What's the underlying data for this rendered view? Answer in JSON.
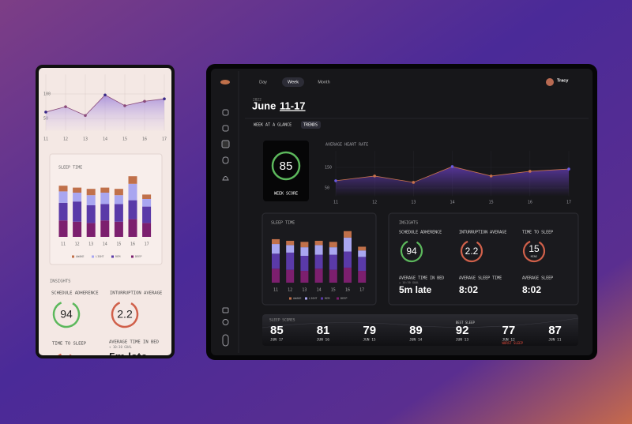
{
  "nav": {
    "tabs": [
      "Day",
      "Week",
      "Month"
    ],
    "user": "Tracy"
  },
  "header": {
    "year": "2022",
    "month": "June",
    "range": "11-17",
    "views": [
      "WEEK AT A GLANCE",
      "TRENDS"
    ]
  },
  "week_score": {
    "value": "85",
    "label": "WEEK SCORE"
  },
  "chart_data": [
    {
      "type": "line",
      "title": "AVERAGE HEART RATE",
      "categories": [
        "11",
        "12",
        "13",
        "14",
        "15",
        "16",
        "17"
      ],
      "values": [
        85,
        108,
        77,
        154,
        108,
        131,
        142
      ],
      "color": "#c8724e",
      "ylim": [
        10,
        230
      ],
      "yticks": [
        50,
        150
      ]
    },
    {
      "type": "bar",
      "title": "SLEEP TIME",
      "categories": [
        "11",
        "12",
        "13",
        "14",
        "15",
        "16",
        "17"
      ],
      "ylim": [
        0,
        10
      ],
      "series": [
        {
          "name": "AWAKE",
          "color": "#c0704a",
          "values": [
            0.9,
            0.8,
            1.0,
            0.8,
            1.0,
            1.2,
            0.7
          ]
        },
        {
          "name": "LIGHT",
          "color": "#a9a6f0",
          "values": [
            1.8,
            1.4,
            1.6,
            1.8,
            1.4,
            2.6,
            1.2
          ]
        },
        {
          "name": "REM",
          "color": "#5a3aa8",
          "values": [
            2.8,
            3.2,
            2.8,
            2.6,
            2.8,
            3.0,
            2.6
          ]
        },
        {
          "name": "DEEP",
          "color": "#7c1f6e",
          "values": [
            2.6,
            2.4,
            2.2,
            2.6,
            2.4,
            2.8,
            2.2
          ]
        }
      ]
    },
    {
      "type": "line",
      "categories": [
        "11",
        "12",
        "13",
        "14",
        "15",
        "16",
        "17"
      ],
      "values": [
        63,
        74,
        56,
        98,
        76,
        85,
        90
      ],
      "color": "#8a4a7a",
      "ylim": [
        25,
        140
      ],
      "yticks": [
        50,
        100
      ]
    }
  ],
  "insights": {
    "title": "INSIGHTS",
    "items": [
      {
        "label": "SCHEDULE ADHERENCE",
        "value": "94"
      },
      {
        "label": "INTURRUPTION AVERAGE",
        "value": "2.2"
      },
      {
        "label": "TIME TO SLEEP",
        "value": "15",
        "unit": "MINS"
      },
      {
        "label": "AVERAGE TIME IN BED",
        "sub": "+ 10:30 GOAL",
        "value": "5m  late"
      },
      {
        "label": "AVERAGE SLEEP TIME",
        "value": "8:02"
      },
      {
        "label": "AVERAGE SLEEP",
        "value": "8:02"
      }
    ]
  },
  "sleep_scores": {
    "title": "SLEEP SCORES",
    "items": [
      {
        "score": "85",
        "date": "JUN 17"
      },
      {
        "score": "81",
        "date": "JUN 16"
      },
      {
        "score": "79",
        "date": "JUN 15"
      },
      {
        "score": "89",
        "date": "JUN 14"
      },
      {
        "score": "92",
        "date": "JUN 13",
        "note": "BEST SLEEP"
      },
      {
        "score": "77",
        "date": "JUN 12",
        "note": "WORST SLEEP"
      },
      {
        "score": "87",
        "date": "JUN 11"
      }
    ]
  }
}
